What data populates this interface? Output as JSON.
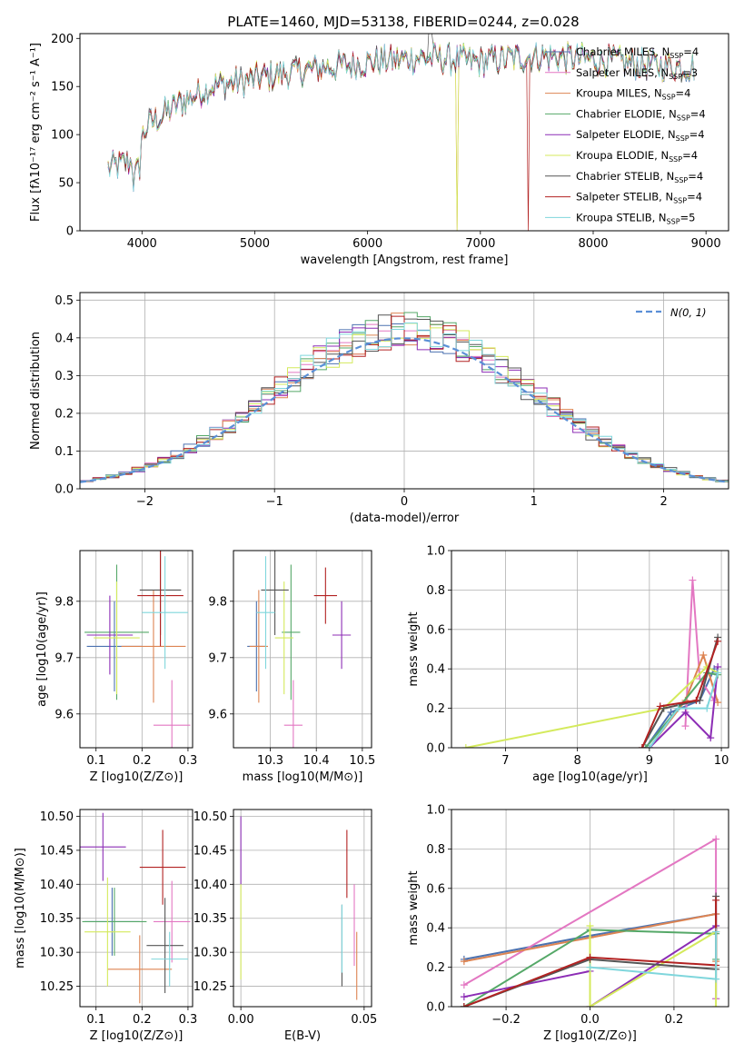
{
  "figure": {
    "title": "PLATE=1460, MJD=53138, FIBERID=0244, z=0.028"
  },
  "series": [
    {
      "name": "Chabrier MILES, N_SSP=4",
      "label": "Chabrier MILES, N",
      "sub": "SSP",
      "suffix": "=4",
      "color": "#4c72b0"
    },
    {
      "name": "Salpeter MILES, N_SSP=3",
      "label": "Salpeter MILES, N",
      "sub": "SSP",
      "suffix": "=3",
      "color": "#e377c2"
    },
    {
      "name": "Kroupa MILES, N_SSP=4",
      "label": "Kroupa MILES, N",
      "sub": "SSP",
      "suffix": "=4",
      "color": "#dd8452"
    },
    {
      "name": "Chabrier ELODIE, N_SSP=4",
      "label": "Chabrier ELODIE, N",
      "sub": "SSP",
      "suffix": "=4",
      "color": "#55a868"
    },
    {
      "name": "Salpeter ELODIE, N_SSP=4",
      "label": "Salpeter ELODIE, N",
      "sub": "SSP",
      "suffix": "=4",
      "color": "#8c2db5"
    },
    {
      "name": "Kroupa ELODIE, N_SSP=4",
      "label": "Kroupa ELODIE, N",
      "sub": "SSP",
      "suffix": "=4",
      "color": "#d4ea5c"
    },
    {
      "name": "Chabrier STELIB, N_SSP=4",
      "label": "Chabrier STELIB, N",
      "sub": "SSP",
      "suffix": "=4",
      "color": "#555555"
    },
    {
      "name": "Salpeter STELIB, N_SSP=4",
      "label": "Salpeter STELIB, N",
      "sub": "SSP",
      "suffix": "=4",
      "color": "#b22222"
    },
    {
      "name": "Kroupa STELIB, N_SSP=5",
      "label": "Kroupa STELIB, N",
      "sub": "SSP",
      "suffix": "=5",
      "color": "#7fd6dc"
    }
  ],
  "chart_data": [
    {
      "id": "spectrum",
      "type": "line",
      "xlabel": "wavelength [Angstrom, rest frame]",
      "ylabel": "Flux [fλ10⁻¹⁷ erg cm⁻² s⁻¹ A⁻¹]",
      "xlim": [
        3450,
        9200
      ],
      "ylim": [
        0,
        205
      ],
      "xticks": [
        4000,
        5000,
        6000,
        7000,
        8000,
        9000
      ],
      "yticks": [
        0,
        50,
        100,
        150,
        200
      ],
      "grid": false,
      "legend": "top-right",
      "continuum": [
        [
          3700,
          65
        ],
        [
          3900,
          72
        ],
        [
          4050,
          110
        ],
        [
          4300,
          130
        ],
        [
          4600,
          150
        ],
        [
          5000,
          158
        ],
        [
          5500,
          168
        ],
        [
          6000,
          175
        ],
        [
          6500,
          180
        ],
        [
          7000,
          176
        ],
        [
          7500,
          182
        ],
        [
          8000,
          178
        ],
        [
          8500,
          172
        ],
        [
          8900,
          170
        ]
      ]
    },
    {
      "id": "residuals",
      "type": "line",
      "xlabel": "(data-model)/error",
      "ylabel": "Normed distribution",
      "xlim": [
        -2.5,
        2.5
      ],
      "ylim": [
        0,
        0.52
      ],
      "xticks": [
        -2,
        -1,
        0,
        1,
        2
      ],
      "yticks": [
        0.0,
        0.1,
        0.2,
        0.3,
        0.4,
        0.5
      ],
      "grid": true,
      "legend": "top-right",
      "reference_label": "N(0, 1)"
    },
    {
      "id": "age_vs_Z",
      "type": "scatter",
      "xlabel": "Z [log10(Z/Z⊙)]",
      "ylabel": "age  [log10(age/yr)]",
      "xlim": [
        0.065,
        0.31
      ],
      "ylim": [
        9.54,
        9.89
      ],
      "xticks": [
        0.1,
        0.2,
        0.3
      ],
      "yticks": [
        9.6,
        9.7,
        9.8
      ],
      "grid": true,
      "points": [
        {
          "x": 0.14,
          "y": 9.72,
          "xerr": 0.06,
          "yerr": 0.08,
          "series": 0
        },
        {
          "x": 0.265,
          "y": 9.58,
          "xerr": 0.04,
          "yerr": 0.08,
          "series": 1
        },
        {
          "x": 0.225,
          "y": 9.72,
          "xerr": 0.07,
          "yerr": 0.1,
          "series": 2
        },
        {
          "x": 0.145,
          "y": 9.745,
          "xerr": 0.07,
          "yerr": 0.12,
          "series": 3
        },
        {
          "x": 0.13,
          "y": 9.74,
          "xerr": 0.05,
          "yerr": 0.07,
          "series": 4
        },
        {
          "x": 0.145,
          "y": 9.735,
          "xerr": 0.05,
          "yerr": 0.1,
          "series": 5
        },
        {
          "x": 0.24,
          "y": 9.82,
          "xerr": 0.045,
          "yerr": 0.08,
          "series": 6
        },
        {
          "x": 0.24,
          "y": 9.81,
          "xerr": 0.05,
          "yerr": 0.09,
          "series": 7
        },
        {
          "x": 0.25,
          "y": 9.78,
          "xerr": 0.05,
          "yerr": 0.1,
          "series": 8
        }
      ]
    },
    {
      "id": "age_vs_mass",
      "type": "scatter",
      "xlabel": "mass [log10(M/M⊙)]",
      "ylabel": "",
      "xlim": [
        10.22,
        10.52
      ],
      "ylim": [
        9.54,
        9.89
      ],
      "xticks": [
        10.3,
        10.4,
        10.5
      ],
      "yticks": [
        9.6,
        9.7,
        9.8
      ],
      "grid": true,
      "points": [
        {
          "x": 10.27,
          "y": 9.72,
          "xerr": 0.02,
          "yerr": 0.08,
          "series": 0
        },
        {
          "x": 10.35,
          "y": 9.58,
          "xerr": 0.02,
          "yerr": 0.08,
          "series": 1
        },
        {
          "x": 10.275,
          "y": 9.72,
          "xerr": 0.02,
          "yerr": 0.1,
          "series": 2
        },
        {
          "x": 10.345,
          "y": 9.745,
          "xerr": 0.02,
          "yerr": 0.12,
          "series": 3
        },
        {
          "x": 10.455,
          "y": 9.74,
          "xerr": 0.02,
          "yerr": 0.06,
          "series": 4
        },
        {
          "x": 10.33,
          "y": 9.735,
          "xerr": 0.02,
          "yerr": 0.1,
          "series": 5
        },
        {
          "x": 10.31,
          "y": 9.82,
          "xerr": 0.03,
          "yerr": 0.08,
          "series": 6
        },
        {
          "x": 10.42,
          "y": 9.81,
          "xerr": 0.025,
          "yerr": 0.05,
          "series": 7
        },
        {
          "x": 10.29,
          "y": 9.78,
          "xerr": 0.02,
          "yerr": 0.1,
          "series": 8
        }
      ]
    },
    {
      "id": "weight_vs_age",
      "type": "line",
      "xlabel": "age  [log10(age/yr)]",
      "ylabel": "mass weight",
      "xlim": [
        6.25,
        10.1
      ],
      "ylim": [
        0,
        1.0
      ],
      "xticks": [
        7,
        8,
        9,
        10
      ],
      "yticks": [
        0.0,
        0.2,
        0.4,
        0.6,
        0.8,
        1.0
      ],
      "grid": true,
      "lines": [
        {
          "series": 0,
          "x": [
            8.95,
            9.3,
            9.7,
            9.9
          ],
          "y": [
            0.0,
            0.18,
            0.24,
            0.4
          ]
        },
        {
          "series": 1,
          "x": [
            9.5,
            9.6,
            9.7,
            9.9
          ],
          "y": [
            0.11,
            0.85,
            0.35,
            0.24
          ]
        },
        {
          "series": 2,
          "x": [
            9.0,
            9.5,
            9.75,
            9.95
          ],
          "y": [
            0.0,
            0.24,
            0.47,
            0.23
          ]
        },
        {
          "series": 3,
          "x": [
            8.95,
            9.4,
            9.8,
            9.95
          ],
          "y": [
            0.0,
            0.2,
            0.38,
            0.37
          ]
        },
        {
          "series": 4,
          "x": [
            9.0,
            9.5,
            9.85,
            9.95
          ],
          "y": [
            0.0,
            0.18,
            0.05,
            0.41
          ]
        },
        {
          "series": 5,
          "x": [
            6.45,
            9.2,
            9.8,
            9.95
          ],
          "y": [
            0.0,
            0.2,
            0.41,
            0.38
          ]
        },
        {
          "series": 6,
          "x": [
            8.9,
            9.2,
            9.7,
            9.95
          ],
          "y": [
            0.0,
            0.2,
            0.24,
            0.56
          ]
        },
        {
          "series": 7,
          "x": [
            8.9,
            9.15,
            9.65,
            9.95
          ],
          "y": [
            0.0,
            0.21,
            0.24,
            0.54
          ]
        },
        {
          "series": 8,
          "x": [
            9.0,
            9.4,
            9.8,
            9.95
          ],
          "y": [
            0.0,
            0.2,
            0.2,
            0.38
          ]
        }
      ]
    },
    {
      "id": "mass_vs_Z",
      "type": "scatter",
      "xlabel": "Z [log10(Z/Z⊙)]",
      "ylabel": "mass [log10(M/M⊙)]",
      "xlim": [
        0.065,
        0.31
      ],
      "ylim": [
        10.22,
        10.51
      ],
      "xticks": [
        0.1,
        0.2,
        0.3
      ],
      "yticks": [
        10.25,
        10.3,
        10.35,
        10.4,
        10.45,
        10.5
      ],
      "grid": true,
      "points": [
        {
          "x": 0.135,
          "y": 10.345,
          "xerr": 0.06,
          "yerr": 0.05,
          "series": 0
        },
        {
          "x": 0.265,
          "y": 10.345,
          "xerr": 0.04,
          "yerr": 0.06,
          "series": 1
        },
        {
          "x": 0.195,
          "y": 10.275,
          "xerr": 0.07,
          "yerr": 0.05,
          "series": 2
        },
        {
          "x": 0.14,
          "y": 10.345,
          "xerr": 0.07,
          "yerr": 0.05,
          "series": 3
        },
        {
          "x": 0.115,
          "y": 10.455,
          "xerr": 0.05,
          "yerr": 0.05,
          "series": 4
        },
        {
          "x": 0.125,
          "y": 10.33,
          "xerr": 0.05,
          "yerr": 0.08,
          "series": 5
        },
        {
          "x": 0.25,
          "y": 10.31,
          "xerr": 0.04,
          "yerr": 0.07,
          "series": 6
        },
        {
          "x": 0.245,
          "y": 10.425,
          "xerr": 0.05,
          "yerr": 0.055,
          "series": 7
        },
        {
          "x": 0.26,
          "y": 10.29,
          "xerr": 0.04,
          "yerr": 0.04,
          "series": 8
        }
      ]
    },
    {
      "id": "mass_vs_ebv",
      "type": "scatter",
      "xlabel": "E(B-V)",
      "ylabel": "",
      "xlim": [
        -0.003,
        0.053
      ],
      "ylim": [
        10.22,
        10.51
      ],
      "xticks": [
        0.0,
        0.05
      ],
      "yticks": [
        10.25,
        10.3,
        10.35,
        10.4,
        10.45,
        10.5
      ],
      "grid": true,
      "points": [
        {
          "x": 0.0,
          "y": 10.45,
          "yerr": 0.05,
          "series": 4
        },
        {
          "x": 0.0,
          "y": 10.33,
          "yerr": 0.07,
          "series": 5
        },
        {
          "x": 0.041,
          "y": 10.31,
          "yerr": 0.06,
          "series": 6
        },
        {
          "x": 0.041,
          "y": 10.32,
          "yerr": 0.05,
          "series": 8
        },
        {
          "x": 0.043,
          "y": 10.43,
          "yerr": 0.05,
          "series": 7
        },
        {
          "x": 0.046,
          "y": 10.34,
          "yerr": 0.06,
          "series": 1
        },
        {
          "x": 0.047,
          "y": 10.28,
          "yerr": 0.05,
          "series": 2
        }
      ]
    },
    {
      "id": "weight_vs_Z",
      "type": "line",
      "xlabel": "Z [log10(Z/Z⊙)]",
      "ylabel": "mass weight",
      "xlim": [
        -0.33,
        0.33
      ],
      "ylim": [
        0,
        1.0
      ],
      "xticks": [
        -0.2,
        0.0,
        0.2
      ],
      "yticks": [
        0.0,
        0.2,
        0.4,
        0.6,
        0.8,
        1.0
      ],
      "grid": true,
      "lines": [
        {
          "series": 0,
          "x": [
            -0.3,
            0.0,
            0.3,
            0.3
          ],
          "y": [
            0.24,
            0.36,
            0.47,
            0.04
          ]
        },
        {
          "series": 1,
          "x": [
            -0.3,
            0.3,
            0.3
          ],
          "y": [
            0.11,
            0.85,
            0.04
          ]
        },
        {
          "series": 2,
          "x": [
            -0.3,
            0.0,
            0.3,
            0.3
          ],
          "y": [
            0.23,
            0.35,
            0.47,
            0.23
          ]
        },
        {
          "series": 3,
          "x": [
            -0.3,
            0.0,
            0.3,
            0.3
          ],
          "y": [
            0.0,
            0.39,
            0.37,
            0.24
          ]
        },
        {
          "series": 4,
          "x": [
            -0.3,
            0.0,
            0.0,
            0.3,
            0.3
          ],
          "y": [
            0.05,
            0.18,
            0.0,
            0.41,
            0.38
          ]
        },
        {
          "series": 5,
          "x": [
            0.0,
            0.0,
            0.3,
            0.3
          ],
          "y": [
            0.41,
            0.0,
            0.38,
            0.0
          ]
        },
        {
          "series": 6,
          "x": [
            -0.3,
            0.0,
            0.3,
            0.3
          ],
          "y": [
            0.0,
            0.24,
            0.19,
            0.56
          ]
        },
        {
          "series": 7,
          "x": [
            -0.3,
            0.0,
            0.3,
            0.3
          ],
          "y": [
            0.0,
            0.25,
            0.21,
            0.54
          ]
        },
        {
          "series": 8,
          "x": [
            0.0,
            0.3,
            0.3
          ],
          "y": [
            0.2,
            0.14,
            0.38
          ]
        }
      ]
    }
  ]
}
